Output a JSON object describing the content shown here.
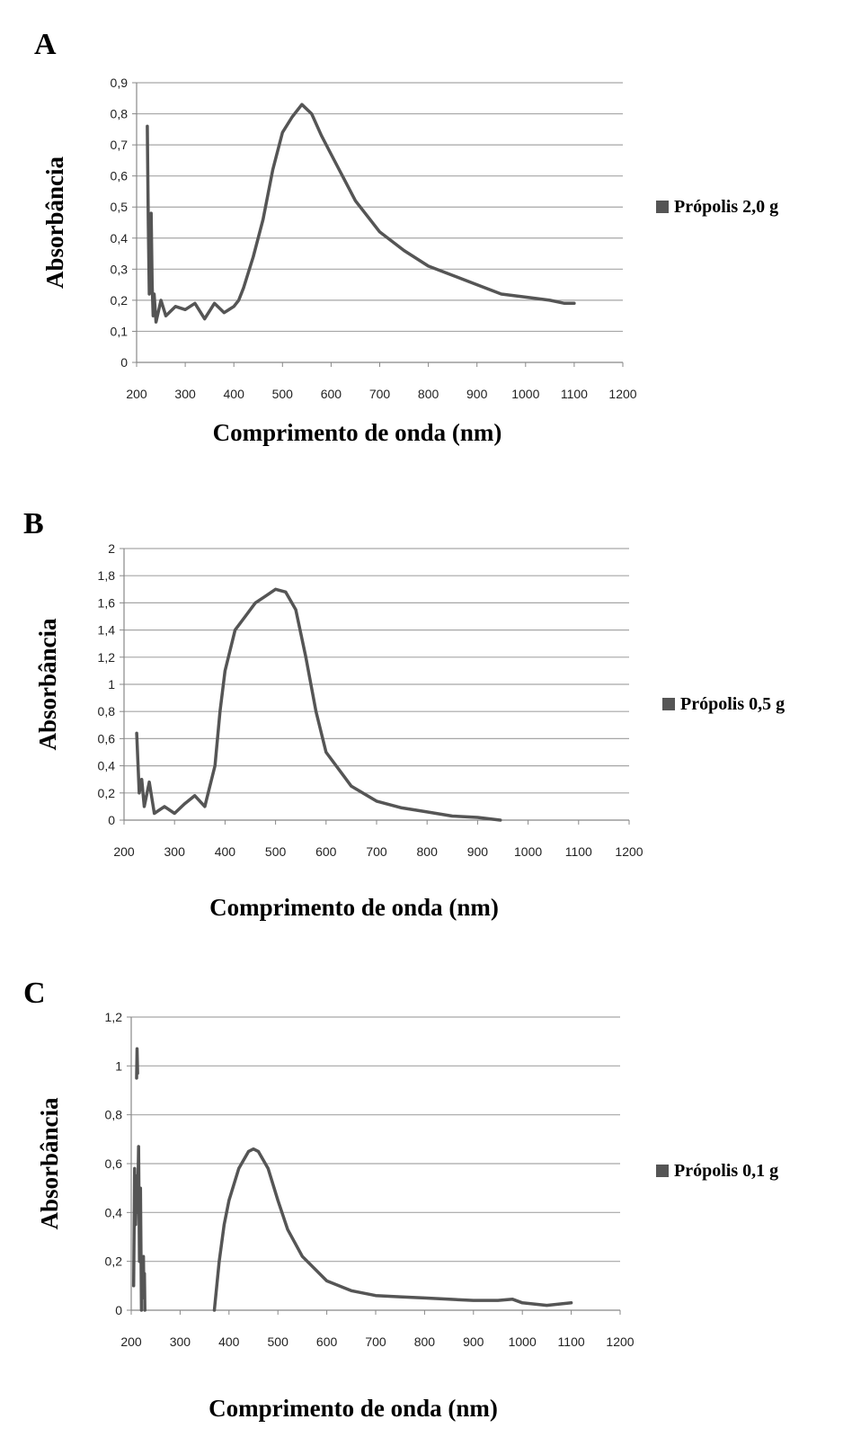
{
  "chart_data": [
    {
      "panel_label": "A",
      "type": "line",
      "xlabel": "Comprimento de onda (nm)",
      "ylabel": "Absorbância",
      "xlim": [
        200,
        1200
      ],
      "ylim": [
        0,
        0.9
      ],
      "xticks": [
        "200",
        "300",
        "400",
        "500",
        "600",
        "700",
        "800",
        "900",
        "1000",
        "1100",
        "1200"
      ],
      "yticks": [
        "0",
        "0,1",
        "0,2",
        "0,3",
        "0,4",
        "0,5",
        "0,6",
        "0,7",
        "0,8",
        "0,9"
      ],
      "grid": true,
      "legend_position": "right",
      "color": "#555555",
      "series": [
        {
          "name": "Própolis 2,0 g",
          "x": [
            222,
            224,
            226,
            228,
            230,
            232,
            234,
            236,
            240,
            250,
            260,
            280,
            300,
            320,
            340,
            360,
            380,
            400,
            410,
            420,
            440,
            460,
            480,
            500,
            520,
            540,
            560,
            580,
            600,
            650,
            700,
            750,
            800,
            850,
            900,
            950,
            1000,
            1050,
            1080,
            1100
          ],
          "y": [
            0.76,
            0.45,
            0.22,
            0.35,
            0.48,
            0.25,
            0.15,
            0.22,
            0.13,
            0.2,
            0.15,
            0.18,
            0.17,
            0.19,
            0.14,
            0.19,
            0.16,
            0.18,
            0.2,
            0.24,
            0.34,
            0.46,
            0.62,
            0.74,
            0.79,
            0.83,
            0.8,
            0.73,
            0.67,
            0.52,
            0.42,
            0.36,
            0.31,
            0.28,
            0.25,
            0.22,
            0.21,
            0.2,
            0.19,
            0.19
          ]
        }
      ]
    },
    {
      "panel_label": "B",
      "type": "line",
      "xlabel": "Comprimento de onda (nm)",
      "ylabel": "Absorbância",
      "xlim": [
        200,
        1200
      ],
      "ylim": [
        0,
        2
      ],
      "xticks": [
        "200",
        "300",
        "400",
        "500",
        "600",
        "700",
        "800",
        "900",
        "1000",
        "1100",
        "1200"
      ],
      "yticks": [
        "0",
        "0,2",
        "0,4",
        "0,6",
        "0,8",
        "1",
        "1,2",
        "1,4",
        "1,6",
        "1,8",
        "2"
      ],
      "grid": true,
      "legend_position": "right",
      "color": "#555555",
      "series": [
        {
          "name": "Própolis 0,5 g",
          "x": [
            225,
            230,
            235,
            240,
            250,
            260,
            280,
            300,
            320,
            340,
            360,
            370,
            380,
            390,
            400,
            420,
            440,
            460,
            480,
            500,
            520,
            540,
            560,
            580,
            600,
            650,
            700,
            750,
            800,
            850,
            900,
            945
          ],
          "y": [
            0.64,
            0.2,
            0.3,
            0.1,
            0.28,
            0.05,
            0.1,
            0.05,
            0.12,
            0.18,
            0.1,
            0.25,
            0.4,
            0.8,
            1.1,
            1.4,
            1.5,
            1.6,
            1.65,
            1.7,
            1.68,
            1.55,
            1.2,
            0.8,
            0.5,
            0.25,
            0.14,
            0.09,
            0.06,
            0.03,
            0.02,
            0.0
          ]
        }
      ]
    },
    {
      "panel_label": "C",
      "type": "line",
      "xlabel": "Comprimento de onda (nm)",
      "ylabel": "Absorbância",
      "xlim": [
        200,
        1200
      ],
      "ylim": [
        0,
        1.2
      ],
      "xticks": [
        "200",
        "300",
        "400",
        "500",
        "600",
        "700",
        "800",
        "900",
        "1000",
        "1100",
        "1200"
      ],
      "yticks": [
        "0",
        "0,2",
        "0,4",
        "0,6",
        "0,8",
        "1",
        "1,2"
      ],
      "grid": true,
      "legend_position": "right",
      "color": "#555555",
      "series": [
        {
          "name": "Própolis 0,1 g",
          "x": [
            370,
            380,
            390,
            400,
            420,
            440,
            450,
            460,
            480,
            500,
            520,
            550,
            600,
            650,
            700,
            750,
            800,
            850,
            900,
            950,
            980,
            1000,
            1050,
            1100
          ],
          "y": [
            0.0,
            0.2,
            0.35,
            0.45,
            0.58,
            0.65,
            0.66,
            0.65,
            0.58,
            0.45,
            0.33,
            0.22,
            0.12,
            0.08,
            0.06,
            0.055,
            0.05,
            0.045,
            0.04,
            0.04,
            0.045,
            0.03,
            0.02,
            0.03
          ]
        },
        {
          "name": "",
          "x": [
            205,
            207,
            209,
            211,
            213,
            215,
            217,
            219,
            221
          ],
          "y": [
            0.1,
            0.58,
            0.35,
            0.55,
            0.4,
            0.67,
            0.2,
            0.5,
            0.0
          ]
        },
        {
          "name": "",
          "x": [
            211,
            212,
            213
          ],
          "y": [
            0.95,
            1.07,
            0.97
          ]
        },
        {
          "name": "",
          "x": [
            225,
            226,
            227,
            228
          ],
          "y": [
            0.22,
            0.05,
            0.15,
            0.0
          ]
        }
      ]
    }
  ]
}
